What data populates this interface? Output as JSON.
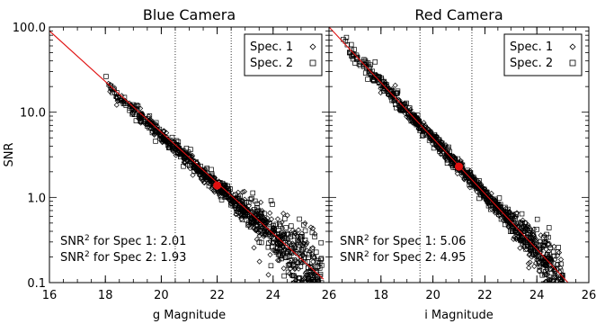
{
  "chart_data": [
    {
      "type": "scatter",
      "title": "Blue Camera",
      "xlabel": "g Magnitude",
      "ylabel": "SNR",
      "xlim": [
        16,
        26
      ],
      "ylim": [
        0.1,
        100
      ],
      "y_scale": "log",
      "xticks": [
        "16",
        "18",
        "20",
        "22",
        "24",
        "26"
      ],
      "yticks": [
        "0.1",
        "1.0",
        "10.0",
        "100.0"
      ],
      "grid": false,
      "legend": {
        "placement": "top-right",
        "entries": [
          "Spec. 1",
          "Spec. 2"
        ]
      },
      "series": [
        {
          "name": "Spec. 1",
          "marker": "diamond",
          "x_range": [
            18.0,
            25.5
          ],
          "trend_through": [
            22.0,
            1.38
          ]
        },
        {
          "name": "Spec. 2",
          "marker": "square",
          "x_range": [
            18.0,
            25.8
          ],
          "trend_through": [
            22.0,
            1.38
          ]
        }
      ],
      "fit_line": {
        "color": "#e01010",
        "points": [
          [
            16,
            90
          ],
          [
            25.8,
            0.11
          ]
        ]
      },
      "reference_point": {
        "x": 22.0,
        "y": 1.38,
        "color": "#e01010"
      },
      "vertical_lines": [
        20.5,
        22.5
      ],
      "annotations": [
        {
          "prefix": "SNR",
          "sup": "2",
          "suffix": " for Spec 1: 2.01"
        },
        {
          "prefix": "SNR",
          "sup": "2",
          "suffix": " for Spec 2: 1.93"
        }
      ]
    },
    {
      "type": "scatter",
      "title": "Red Camera",
      "xlabel": "i Magnitude",
      "ylabel": "",
      "xlim": [
        16,
        26
      ],
      "ylim": [
        0.1,
        100
      ],
      "y_scale": "log",
      "xticks": [
        "16",
        "18",
        "20",
        "22",
        "24",
        "26"
      ],
      "grid": false,
      "legend": {
        "placement": "top-right",
        "entries": [
          "Spec. 1",
          "Spec. 2"
        ]
      },
      "series": [
        {
          "name": "Spec. 1",
          "marker": "diamond",
          "x_range": [
            17.8,
            25.0
          ],
          "trend_through": [
            21.0,
            2.3
          ]
        },
        {
          "name": "Spec. 2",
          "marker": "square",
          "x_range": [
            16.5,
            25.0
          ],
          "trend_through": [
            21.0,
            2.3
          ]
        }
      ],
      "fit_line": {
        "color": "#e01010",
        "points": [
          [
            16,
            100
          ],
          [
            25.2,
            0.1
          ]
        ]
      },
      "reference_point": {
        "x": 21.0,
        "y": 2.3,
        "color": "#e01010"
      },
      "vertical_lines": [
        19.5,
        21.5
      ],
      "annotations": [
        {
          "prefix": "SNR",
          "sup": "2",
          "suffix": " for Spec 1: 5.06"
        },
        {
          "prefix": "SNR",
          "sup": "2",
          "suffix": " for Spec 2: 4.95"
        }
      ]
    }
  ]
}
